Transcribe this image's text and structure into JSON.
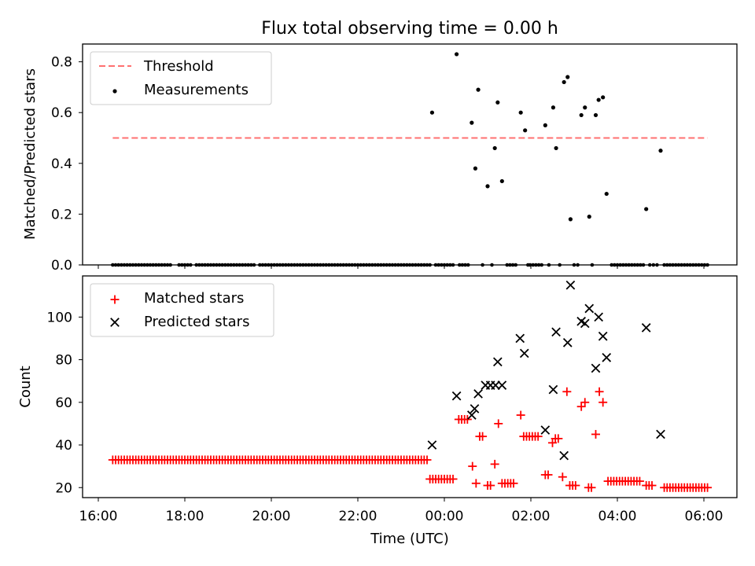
{
  "chart_data": [
    {
      "type": "scatter",
      "title": "Flux total observing time = 0.00 h",
      "xlabel": "",
      "ylabel": "Matched/Predicted stars",
      "ylim": [
        0,
        0.87
      ],
      "yticks": [
        "0.0",
        "0.2",
        "0.4",
        "0.6",
        "0.8"
      ],
      "grid": false,
      "legend_position": "top-left",
      "threshold": {
        "name": "Threshold",
        "value": 0.5,
        "x_from": "16:20",
        "x_to": "06:05",
        "color": "#ff7070",
        "style": "dashed"
      },
      "series": [
        {
          "name": "Measurements",
          "color": "#000000",
          "marker": "dot",
          "points": [
            [
              "23:43",
              0.6
            ],
            [
              "00:17",
              0.83
            ],
            [
              "00:38",
              0.56
            ],
            [
              "00:43",
              0.38
            ],
            [
              "00:47",
              0.69
            ],
            [
              "01:00",
              0.31
            ],
            [
              "01:10",
              0.46
            ],
            [
              "01:14",
              0.64
            ],
            [
              "01:20",
              0.33
            ],
            [
              "01:46",
              0.6
            ],
            [
              "01:52",
              0.53
            ],
            [
              "02:20",
              0.55
            ],
            [
              "02:31",
              0.62
            ],
            [
              "02:35",
              0.46
            ],
            [
              "02:46",
              0.72
            ],
            [
              "02:51",
              0.74
            ],
            [
              "02:55",
              0.18
            ],
            [
              "03:10",
              0.59
            ],
            [
              "03:15",
              0.62
            ],
            [
              "03:21",
              0.19
            ],
            [
              "03:30",
              0.59
            ],
            [
              "03:34",
              0.65
            ],
            [
              "03:40",
              0.66
            ],
            [
              "03:45",
              0.28
            ],
            [
              "04:40",
              0.22
            ],
            [
              "05:00",
              0.45
            ]
          ],
          "zero_points": [
            "16:20",
            "16:24",
            "16:28",
            "16:32",
            "16:36",
            "16:40",
            "16:44",
            "16:48",
            "16:52",
            "16:56",
            "17:00",
            "17:04",
            "17:08",
            "17:12",
            "17:16",
            "17:20",
            "17:24",
            "17:28",
            "17:32",
            "17:36",
            "17:40",
            "17:52",
            "17:56",
            "18:00",
            "18:04",
            "18:08",
            "18:16",
            "18:20",
            "18:24",
            "18:28",
            "18:32",
            "18:36",
            "18:40",
            "18:44",
            "18:48",
            "18:52",
            "18:56",
            "19:00",
            "19:04",
            "19:08",
            "19:12",
            "19:16",
            "19:20",
            "19:24",
            "19:28",
            "19:32",
            "19:36",
            "19:44",
            "19:48",
            "19:52",
            "19:56",
            "20:00",
            "20:04",
            "20:08",
            "20:12",
            "20:16",
            "20:20",
            "20:24",
            "20:28",
            "20:32",
            "20:36",
            "20:40",
            "20:44",
            "20:48",
            "20:52",
            "20:56",
            "21:00",
            "21:04",
            "21:08",
            "21:12",
            "21:16",
            "21:20",
            "21:24",
            "21:28",
            "21:32",
            "21:36",
            "21:40",
            "21:44",
            "21:48",
            "21:52",
            "21:56",
            "22:00",
            "22:04",
            "22:08",
            "22:12",
            "22:16",
            "22:20",
            "22:24",
            "22:28",
            "22:32",
            "22:36",
            "22:40",
            "22:44",
            "22:48",
            "22:52",
            "22:56",
            "23:00",
            "23:04",
            "23:08",
            "23:12",
            "23:16",
            "23:20",
            "23:24",
            "23:28",
            "23:32",
            "23:36",
            "23:40",
            "23:48",
            "23:52",
            "23:56",
            "00:00",
            "00:04",
            "00:08",
            "00:12",
            "00:21",
            "00:25",
            "00:29",
            "00:33",
            "00:53",
            "01:06",
            "01:27",
            "01:31",
            "01:35",
            "01:39",
            "01:56",
            "01:59",
            "02:03",
            "02:07",
            "02:11",
            "02:15",
            "02:25",
            "02:40",
            "03:00",
            "03:05",
            "03:25",
            "03:52",
            "03:56",
            "04:00",
            "04:04",
            "04:08",
            "04:12",
            "04:16",
            "04:20",
            "04:24",
            "04:28",
            "04:32",
            "04:36",
            "04:45",
            "04:50",
            "04:55",
            "05:05",
            "05:09",
            "05:13",
            "05:17",
            "05:21",
            "05:25",
            "05:29",
            "05:33",
            "05:37",
            "05:41",
            "05:45",
            "05:49",
            "05:53",
            "05:57",
            "06:01",
            "06:05"
          ]
        }
      ]
    },
    {
      "type": "scatter",
      "title": "",
      "xlabel": "Time (UTC)",
      "ylabel": "Count",
      "ylim": [
        15.3,
        119.3
      ],
      "yticks": [
        "20",
        "40",
        "60",
        "80",
        "100"
      ],
      "xticks": [
        "16:00",
        "18:00",
        "20:00",
        "22:00",
        "00:00",
        "02:00",
        "04:00",
        "06:00"
      ],
      "grid": false,
      "legend_position": "top-left",
      "series": [
        {
          "name": "Matched stars",
          "color": "#ff0000",
          "marker": "plus",
          "runs": [
            {
              "from": "16:20",
              "to": "23:36",
              "step_min": 4,
              "value": 33
            },
            {
              "from": "23:40",
              "to": "00:12",
              "step_min": 4,
              "value": 24
            },
            {
              "from": "05:05",
              "to": "06:05",
              "step_min": 4,
              "value": 20
            }
          ],
          "points": [
            [
              "00:20",
              52
            ],
            [
              "00:24",
              52
            ],
            [
              "00:28",
              52
            ],
            [
              "00:32",
              52
            ],
            [
              "00:39",
              30
            ],
            [
              "00:44",
              22
            ],
            [
              "00:49",
              44
            ],
            [
              "00:53",
              44
            ],
            [
              "01:00",
              21
            ],
            [
              "01:04",
              21
            ],
            [
              "01:10",
              31
            ],
            [
              "01:15",
              50
            ],
            [
              "01:20",
              22
            ],
            [
              "01:24",
              22
            ],
            [
              "01:28",
              22
            ],
            [
              "01:32",
              22
            ],
            [
              "01:36",
              22
            ],
            [
              "01:46",
              54
            ],
            [
              "01:50",
              44
            ],
            [
              "01:54",
              44
            ],
            [
              "01:58",
              44
            ],
            [
              "02:02",
              44
            ],
            [
              "02:06",
              44
            ],
            [
              "02:10",
              44
            ],
            [
              "02:20",
              26
            ],
            [
              "02:24",
              26
            ],
            [
              "02:30",
              41
            ],
            [
              "02:34",
              43
            ],
            [
              "02:38",
              43
            ],
            [
              "02:44",
              25
            ],
            [
              "02:50",
              65
            ],
            [
              "02:54",
              21
            ],
            [
              "02:58",
              21
            ],
            [
              "03:02",
              21
            ],
            [
              "03:10",
              58
            ],
            [
              "03:15",
              60
            ],
            [
              "03:20",
              20
            ],
            [
              "03:24",
              20
            ],
            [
              "03:30",
              45
            ],
            [
              "03:35",
              65
            ],
            [
              "03:40",
              60
            ],
            [
              "03:47",
              23
            ],
            [
              "03:51",
              23
            ],
            [
              "03:55",
              23
            ],
            [
              "03:59",
              23
            ],
            [
              "04:03",
              23
            ],
            [
              "04:07",
              23
            ],
            [
              "04:11",
              23
            ],
            [
              "04:15",
              23
            ],
            [
              "04:19",
              23
            ],
            [
              "04:23",
              23
            ],
            [
              "04:27",
              23
            ],
            [
              "04:31",
              23
            ],
            [
              "04:40",
              21
            ],
            [
              "04:44",
              21
            ],
            [
              "04:48",
              21
            ]
          ]
        },
        {
          "name": "Predicted stars",
          "color": "#000000",
          "marker": "cross",
          "points": [
            [
              "23:43",
              40
            ],
            [
              "00:17",
              63
            ],
            [
              "00:38",
              54
            ],
            [
              "00:42",
              57
            ],
            [
              "00:47",
              64
            ],
            [
              "00:57",
              68
            ],
            [
              "01:04",
              68
            ],
            [
              "01:11",
              68
            ],
            [
              "01:14",
              79
            ],
            [
              "01:20",
              68
            ],
            [
              "01:45",
              90
            ],
            [
              "01:51",
              83
            ],
            [
              "02:20",
              47
            ],
            [
              "02:31",
              66
            ],
            [
              "02:35",
              93
            ],
            [
              "02:46",
              35
            ],
            [
              "02:51",
              88
            ],
            [
              "02:55",
              115
            ],
            [
              "03:10",
              98
            ],
            [
              "03:15",
              97
            ],
            [
              "03:21",
              104
            ],
            [
              "03:30",
              76
            ],
            [
              "03:34",
              100
            ],
            [
              "03:40",
              91
            ],
            [
              "03:45",
              81
            ],
            [
              "04:40",
              95
            ],
            [
              "05:00",
              45
            ]
          ]
        }
      ]
    }
  ]
}
